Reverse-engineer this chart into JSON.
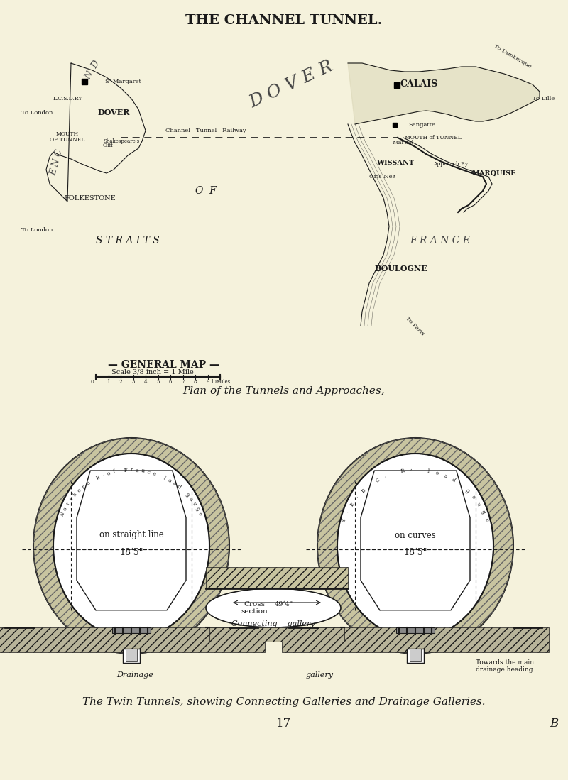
{
  "bg_color": "#f5f2dc",
  "title": "THE CHANNEL TUNNEL.",
  "caption_top": "Plan of the Tunnels and Approaches,",
  "caption_bottom": "The Twin Tunnels, showing Connecting Galleries and Drainage Galleries.",
  "page_number": "17",
  "page_letter": "B",
  "left_tunnel_label1": "on straight line",
  "left_tunnel_label2": "18‘5\"",
  "right_tunnel_label1": "on curves",
  "right_tunnel_label2": "18‘5\"",
  "left_gauge_text": "Northern R·of France load gauge",
  "right_gauge_text": "S·E·D·C· R’ load gauge",
  "connecting_label1": "Cross",
  "connecting_label2": "section",
  "connecting_label3": "49‘4\"",
  "gallery_label": "Connecting    gallery",
  "drainage_label": "Drainage",
  "gallery_label2": "gallery",
  "towards_label": "Towards the main",
  "drainage_heading_label": "drainage heading",
  "general_map_title": "— GENERAL MAP —",
  "scale_text": "Scale 3/8 inch = 1 Mile",
  "text_color": "#1a1a1a",
  "line_color": "#1a1a1a",
  "hatch_color": "#333333"
}
